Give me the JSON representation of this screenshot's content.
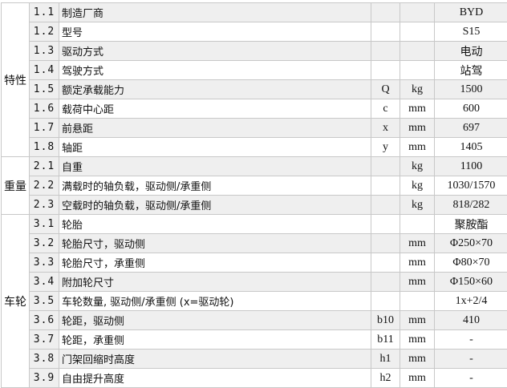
{
  "groups": [
    {
      "label": "特性",
      "rows": [
        {
          "no": "1.1",
          "name": "制造厂商",
          "sym": "",
          "unit": "",
          "val": "BYD"
        },
        {
          "no": "1.2",
          "name": "型号",
          "sym": "",
          "unit": "",
          "val": "S15"
        },
        {
          "no": "1.3",
          "name": "驱动方式",
          "sym": "",
          "unit": "",
          "val": "电动"
        },
        {
          "no": "1.4",
          "name": "驾驶方式",
          "sym": "",
          "unit": "",
          "val": "站驾"
        },
        {
          "no": "1.5",
          "name": "额定承载能力",
          "sym": "Q",
          "unit": "kg",
          "val": "1500"
        },
        {
          "no": "1.6",
          "name": "载荷中心距",
          "sym": "c",
          "unit": "mm",
          "val": "600"
        },
        {
          "no": "1.7",
          "name": "前悬距",
          "sym": "x",
          "unit": "mm",
          "val": "697"
        },
        {
          "no": "1.8",
          "name": "轴距",
          "sym": "y",
          "unit": "mm",
          "val": "1405"
        }
      ]
    },
    {
      "label": "重量",
      "rows": [
        {
          "no": "2.1",
          "name": "自重",
          "sym": "",
          "unit": "kg",
          "val": "1100"
        },
        {
          "no": "2.2",
          "name": "满载时的轴负载，驱动侧/承重侧",
          "sym": "",
          "unit": "kg",
          "val": "1030/1570"
        },
        {
          "no": "2.3",
          "name": "空载时的轴负载，驱动侧/承重侧",
          "sym": "",
          "unit": "kg",
          "val": "818/282"
        }
      ]
    },
    {
      "label": "车轮",
      "rows": [
        {
          "no": "3.1",
          "name": "轮胎",
          "sym": "",
          "unit": "",
          "val": "聚胺酯"
        },
        {
          "no": "3.2",
          "name": "轮胎尺寸，驱动侧",
          "sym": "",
          "unit": "mm",
          "val": "Φ250×70"
        },
        {
          "no": "3.3",
          "name": "轮胎尺寸，承重侧",
          "sym": "",
          "unit": "mm",
          "val": "Φ80×70"
        },
        {
          "no": "3.4",
          "name": "附加轮尺寸",
          "sym": "",
          "unit": "mm",
          "val": "Φ150×60"
        },
        {
          "no": "3.5",
          "name": "车轮数量, 驱动侧/承重侧 (x=驱动轮)",
          "sym": "",
          "unit": "",
          "val": "1x+2/4"
        },
        {
          "no": "3.6",
          "name": "轮距，驱动侧",
          "sym": "b10",
          "unit": "mm",
          "val": "410"
        },
        {
          "no": "3.7",
          "name": "轮距，承重侧",
          "sym": "b11",
          "unit": "mm",
          "val": "-"
        },
        {
          "no": "3.8",
          "name": "门架回缩时高度",
          "sym": "h1",
          "unit": "mm",
          "val": "-"
        },
        {
          "no": "3.9",
          "name": "自由提升高度",
          "sym": "h2",
          "unit": "mm",
          "val": "-"
        }
      ]
    }
  ]
}
